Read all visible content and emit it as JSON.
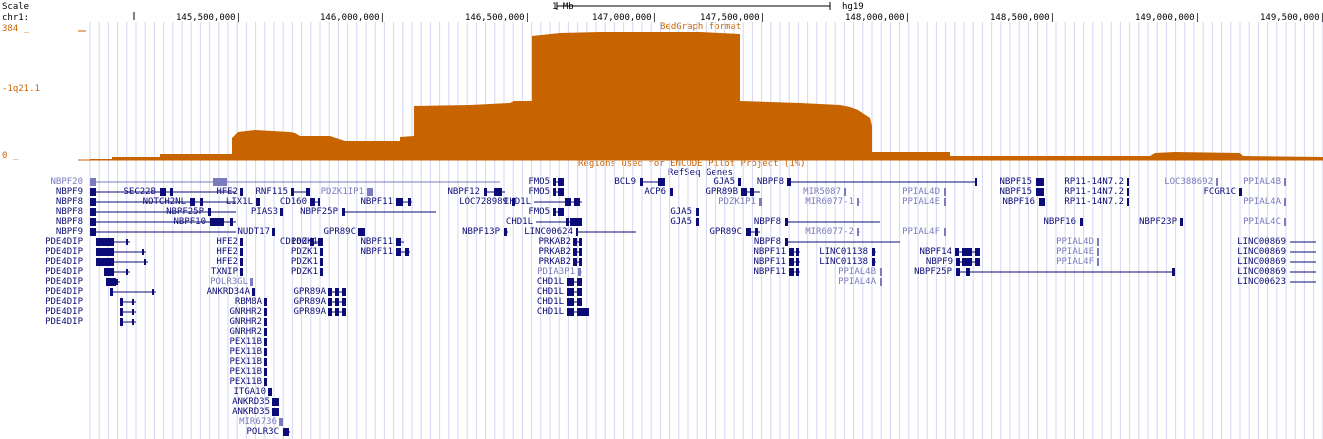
{
  "header": {
    "scale_label": "Scale",
    "chrom_label": "chr1:",
    "scale_bar_text": "1 Mb",
    "assembly": "hg19",
    "positions": [
      "145,500,000|",
      "146,000,000|",
      "146,500,000|",
      "147,000,000|",
      "147,500,000|",
      "148,000,000|",
      "148,500,000|",
      "149,000,000|",
      "149,500,000|"
    ]
  },
  "bedgraph": {
    "max_label": "384 _",
    "min_label": "0 _",
    "band_label": "-1q21.1",
    "title": "BedGraph format",
    "color": "#c86400"
  },
  "encode": {
    "title": "Regions used for ENCODE Pilot Project (1%)"
  },
  "refseq": {
    "title": "RefSeq Genes",
    "left_labels": [
      "NBPF20",
      "NBPF9",
      "NBPF8",
      "NBPF8",
      "NBPF8",
      "NBPF9",
      "PDE4DIP",
      "PDE4DIP",
      "PDE4DIP",
      "PDE4DIP",
      "PDE4DIP",
      "PDE4DIP",
      "PDE4DIP",
      "PDE4DIP",
      "PDE4DIP"
    ],
    "genes": [
      {
        "label": "SEC22B"
      },
      {
        "label": "NOTCH2NL"
      },
      {
        "label": "NBPF25P"
      },
      {
        "label": "NBPF10"
      },
      {
        "label": "HFE2"
      },
      {
        "label": "LIX1L"
      },
      {
        "label": "PIAS3"
      },
      {
        "label": "NUDT17"
      },
      {
        "label": "HFE2"
      },
      {
        "label": "HFE2"
      },
      {
        "label": "HFE2"
      },
      {
        "label": "TXNIP"
      },
      {
        "label": "POLR3GL"
      },
      {
        "label": "ANKRD34A"
      },
      {
        "label": "RBM8A"
      },
      {
        "label": "GNRHR2"
      },
      {
        "label": "GNRHR2"
      },
      {
        "label": "GNRHR2"
      },
      {
        "label": "PEX11B"
      },
      {
        "label": "PEX11B"
      },
      {
        "label": "PEX11B"
      },
      {
        "label": "PEX11B"
      },
      {
        "label": "PEX11B"
      },
      {
        "label": "ITGA10"
      },
      {
        "label": "ANKRD35"
      },
      {
        "label": "ANKRD35"
      },
      {
        "label": "MIR6736"
      },
      {
        "label": "POLR3C"
      },
      {
        "label": "RNF115"
      },
      {
        "label": "CD160"
      },
      {
        "label": "NBPF25P"
      },
      {
        "label": "CD160"
      },
      {
        "label": "PDZK1"
      },
      {
        "label": "PDZK1"
      },
      {
        "label": "PDZK1"
      },
      {
        "label": "PDZK1"
      },
      {
        "label": "PDZK1IP1"
      },
      {
        "label": "GPR89C"
      },
      {
        "label": "GPR89A"
      },
      {
        "label": "GPR89A"
      },
      {
        "label": "GPR89A"
      },
      {
        "label": "NBPF11"
      },
      {
        "label": "NBPF11"
      },
      {
        "label": "NBPF11"
      },
      {
        "label": "NBPF12"
      },
      {
        "label": "LOC728989"
      },
      {
        "label": "NBPF13P"
      },
      {
        "label": "FMO5"
      },
      {
        "label": "FMO5"
      },
      {
        "label": "CHD1L"
      },
      {
        "label": "FMO5"
      },
      {
        "label": "CHD1L"
      },
      {
        "label": "LINC00624"
      },
      {
        "label": "PRKAB2"
      },
      {
        "label": "PRKAB2"
      },
      {
        "label": "PRKAB2"
      },
      {
        "label": "PDIA3P1"
      },
      {
        "label": "CHD1L"
      },
      {
        "label": "CHD1L"
      },
      {
        "label": "CHD1L"
      },
      {
        "label": "CHD1L"
      },
      {
        "label": "BCL9"
      },
      {
        "label": "ACP6"
      },
      {
        "label": "GJA5"
      },
      {
        "label": "GPR89B"
      },
      {
        "label": "PDZK1P1"
      },
      {
        "label": "GJA5"
      },
      {
        "label": "GJA5"
      },
      {
        "label": "GPR89C"
      },
      {
        "label": "NBPF8"
      },
      {
        "label": "MIR5087"
      },
      {
        "label": "MIR6077-1"
      },
      {
        "label": "NBPF8"
      },
      {
        "label": "MIR6077-2"
      },
      {
        "label": "NBPF8"
      },
      {
        "label": "NBPF11"
      },
      {
        "label": "LINC01138"
      },
      {
        "label": "NBPF11"
      },
      {
        "label": "LINC01138"
      },
      {
        "label": "NBPF11"
      },
      {
        "label": "PPIAL4B"
      },
      {
        "label": "PPIAL4A"
      },
      {
        "label": "PPIAL4D"
      },
      {
        "label": "PPIAL4E"
      },
      {
        "label": "PPIAL4F"
      },
      {
        "label": "NBPF14"
      },
      {
        "label": "NBPF9"
      },
      {
        "label": "NBPF25P"
      },
      {
        "label": "NBPF15"
      },
      {
        "label": "NBPF15"
      },
      {
        "label": "NBPF16"
      },
      {
        "label": "NBPF16"
      },
      {
        "label": "PPIAL4D"
      },
      {
        "label": "PPIAL4E"
      },
      {
        "label": "PPIAL4F"
      },
      {
        "label": "RP11-14N7.2"
      },
      {
        "label": "RP11-14N7.2"
      },
      {
        "label": "RP11-14N7.2"
      },
      {
        "label": "NBPF23P"
      },
      {
        "label": "LOC388692"
      },
      {
        "label": "FCGR1C"
      },
      {
        "label": "PPIAL4B"
      },
      {
        "label": "PPIAL4A"
      },
      {
        "label": "PPIAL4C"
      },
      {
        "label": "LINC00869"
      },
      {
        "label": "LINC00869"
      },
      {
        "label": "LINC00869"
      },
      {
        "label": "LINC00869"
      },
      {
        "label": "LINC00623"
      }
    ]
  }
}
